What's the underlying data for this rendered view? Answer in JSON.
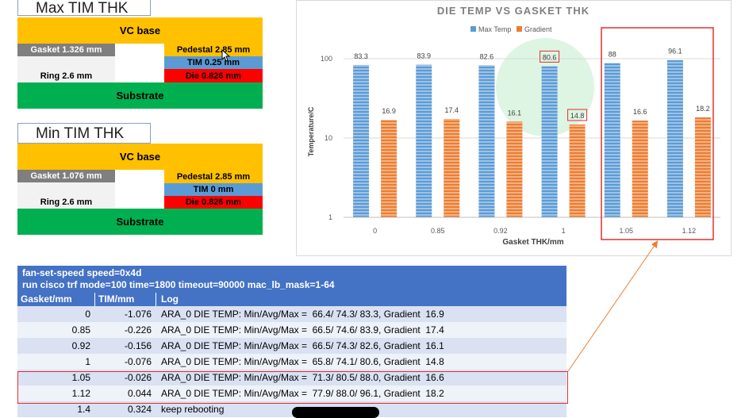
{
  "max_tim": {
    "title": "Max TIM THK",
    "vc_base": "VC base",
    "gasket": "Gasket 1.326 mm",
    "pedestal": "Pedestal 2.85 mm",
    "tim": "TIM 0.25 mm",
    "ring": "Ring 2.6 mm",
    "die": "Die 0.826 mm",
    "substrate": "Substrate"
  },
  "min_tim": {
    "title": "Min TIM THK",
    "vc_base": "VC base",
    "gasket": "Gasket 1.076 mm",
    "pedestal": "Pedestal 2.85 mm",
    "tim": "TIM 0 mm",
    "ring": "Ring 2.6 mm",
    "die": "Die 0.826 mm",
    "substrate": "Substrate"
  },
  "colors": {
    "vc_base": "#ffc000",
    "gasket": "#7f7f7f",
    "tim": "#5b9bd5",
    "die": "#ff0000",
    "substrate": "#00b050",
    "ring": "#f2f2f2",
    "series_max": "#5b9bd5",
    "series_grad": "#ed7d31",
    "table_header": "#4472c4",
    "highlight": "#e03030"
  },
  "chart_data": {
    "type": "bar",
    "title": "DIE TEMP VS GASKET THK",
    "xlabel": "Gasket THK/mm",
    "ylabel": "Temperature/C",
    "y_scale": "log",
    "ylim": [
      1,
      100
    ],
    "yticks": [
      "1",
      "10",
      "100"
    ],
    "legend_position": "top",
    "categories": [
      "0",
      "0.85",
      "0.92",
      "1",
      "1.05",
      "1.12"
    ],
    "series": [
      {
        "name": "Max Temp",
        "values": [
          83.3,
          83.9,
          82.6,
          80.6,
          88,
          96.1
        ],
        "labels": [
          "83.3",
          "83.9",
          "82.6",
          "80.6",
          "88",
          "96.1"
        ]
      },
      {
        "name": "Gradient",
        "values": [
          16.9,
          17.4,
          16.1,
          14.8,
          16.6,
          18.2
        ],
        "labels": [
          "16.9",
          "17.4",
          "16.1",
          "14.8",
          "16.6",
          "18.2"
        ]
      }
    ]
  },
  "table": {
    "line1": "fan-set-speed speed=0x4d",
    "line2": "run cisco trf mode=100 time=1800 timeout=90000 mac_lb_mask=1-64",
    "headers": [
      "Gasket/mm",
      "TIM/mm",
      "Log"
    ],
    "rows": [
      [
        "0",
        "-1.076",
        "ARA_0 DIE TEMP: Min/Avg/Max =  66.4/ 74.3/ 83.3, Gradient  16.9"
      ],
      [
        "0.85",
        "-0.226",
        "ARA_0 DIE TEMP: Min/Avg/Max =  66.5/ 74.6/ 83.9, Gradient  17.4"
      ],
      [
        "0.92",
        "-0.156",
        "ARA_0 DIE TEMP: Min/Avg/Max =  66.5/ 74.3/ 82.6, Gradient  16.1"
      ],
      [
        "1",
        "-0.076",
        "ARA_0 DIE TEMP: Min/Avg/Max =  65.8/ 74.1/ 80.6, Gradient  14.8"
      ],
      [
        "1.05",
        "-0.026",
        "ARA_0 DIE TEMP: Min/Avg/Max =  71.3/ 80.5/ 88.0, Gradient  16.6"
      ],
      [
        "1.12",
        "0.044",
        "ARA_0 DIE TEMP: Min/Avg/Max =  77.9/ 88.0/ 96.1, Gradient  18.2"
      ],
      [
        "1.4",
        "0.324",
        "keep rebooting"
      ]
    ]
  }
}
